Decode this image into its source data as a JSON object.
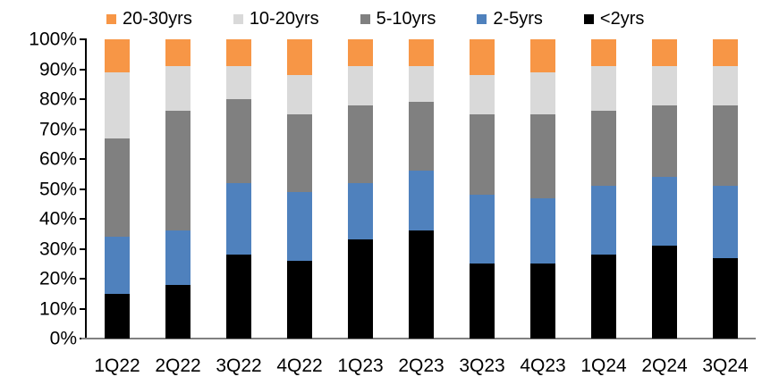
{
  "chart_data": {
    "type": "bar",
    "variant": "stacked-100",
    "title": "",
    "xlabel": "",
    "ylabel": "",
    "unit": "%",
    "ylim": [
      0,
      100
    ],
    "grid": false,
    "legend_position": "top",
    "categories": [
      "1Q22",
      "2Q22",
      "3Q22",
      "4Q22",
      "1Q23",
      "2Q23",
      "3Q23",
      "4Q23",
      "1Q24",
      "2Q24",
      "3Q24"
    ],
    "series": [
      {
        "name": "<2yrs",
        "color": "#000000",
        "values": [
          15,
          18,
          28,
          26,
          33,
          36,
          25,
          25,
          28,
          31,
          27
        ]
      },
      {
        "name": "2-5yrs",
        "color": "#4F81BD",
        "values": [
          19,
          18,
          24,
          23,
          19,
          20,
          23,
          22,
          23,
          23,
          24
        ]
      },
      {
        "name": "5-10yrs",
        "color": "#808080",
        "values": [
          33,
          40,
          28,
          26,
          26,
          23,
          27,
          28,
          25,
          24,
          27
        ]
      },
      {
        "name": "10-20yrs",
        "color": "#D9D9D9",
        "values": [
          22,
          15,
          11,
          13,
          13,
          12,
          13,
          14,
          15,
          13,
          13
        ]
      },
      {
        "name": "20-30yrs",
        "color": "#F79646",
        "values": [
          11,
          9,
          9,
          12,
          9,
          9,
          12,
          11,
          9,
          9,
          9
        ]
      }
    ],
    "legend_order": [
      "20-30yrs",
      "10-20yrs",
      "5-10yrs",
      "2-5yrs",
      "<2yrs"
    ],
    "y_ticks": [
      "100%",
      "90%",
      "80%",
      "70%",
      "60%",
      "50%",
      "40%",
      "30%",
      "20%",
      "10%",
      "0%"
    ]
  },
  "colors": {
    "background": "#FFFFFF",
    "text": "#000000",
    "y_axis": "#000000",
    "x_axis": "#808080"
  }
}
